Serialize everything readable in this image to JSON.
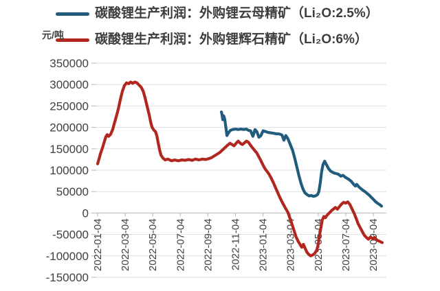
{
  "page_background": "#ffffff",
  "unit_label": "元/吨",
  "legend": [
    {
      "label": "碳酸锂生产利润：外购锂云母精矿（Li₂O:2.5%）",
      "color": "#215c7c",
      "series_key": "mica"
    },
    {
      "label": "碳酸锂生产利润：外购锂辉石精矿（Li₂O:6%）",
      "color": "#b2271d",
      "series_key": "spodumene"
    }
  ],
  "chart_data": {
    "type": "line",
    "title": "",
    "ylabel": "元/吨",
    "xlabel": "",
    "grid": true,
    "legend_position": "top-left",
    "ylim": [
      -150000,
      350000
    ],
    "xlim": [
      -0.1,
      20.95
    ],
    "x_unit": "months since 2022-01-04",
    "grid_color": "#dedede",
    "axis_color": "#b5b5b5",
    "tick_text_color": "#404040",
    "y_ticks": [
      350000,
      300000,
      250000,
      200000,
      150000,
      100000,
      50000,
      0,
      -50000,
      -100000,
      -150000
    ],
    "x_ticks": [
      {
        "t": 0,
        "label": "2022-01-04"
      },
      {
        "t": 2,
        "label": "2022-03-04"
      },
      {
        "t": 4,
        "label": "2022-05-04"
      },
      {
        "t": 6,
        "label": "2022-07-04"
      },
      {
        "t": 8,
        "label": "2022-09-04"
      },
      {
        "t": 10,
        "label": "2022-11-04"
      },
      {
        "t": 12,
        "label": "2023-01-04"
      },
      {
        "t": 14,
        "label": "2023-03-04"
      },
      {
        "t": 16,
        "label": "2023-05-04"
      },
      {
        "t": 18,
        "label": "2023-07-04"
      },
      {
        "t": 20,
        "label": "2023-09-04"
      }
    ],
    "series": [
      {
        "name": "碳酸锂生产利润：外购锂云母精矿（Li₂O:2.5%）",
        "key": "mica-blue",
        "color": "#215c7c",
        "points": [
          [
            8.98,
            236000
          ],
          [
            9.03,
            230000
          ],
          [
            9.08,
            218000
          ],
          [
            9.15,
            227000
          ],
          [
            9.22,
            220000
          ],
          [
            9.3,
            202000
          ],
          [
            9.38,
            181000
          ],
          [
            9.5,
            188000
          ],
          [
            9.63,
            193000
          ],
          [
            9.8,
            195000
          ],
          [
            10.0,
            196000
          ],
          [
            10.2,
            195000
          ],
          [
            10.4,
            196000
          ],
          [
            10.6,
            195000
          ],
          [
            10.8,
            196000
          ],
          [
            10.95,
            193000
          ],
          [
            11.1,
            192000
          ],
          [
            11.27,
            179000
          ],
          [
            11.42,
            195000
          ],
          [
            11.55,
            190000
          ],
          [
            11.7,
            177000
          ],
          [
            11.85,
            181000
          ],
          [
            12.0,
            192000
          ],
          [
            12.2,
            190000
          ],
          [
            12.4,
            188000
          ],
          [
            12.6,
            187000
          ],
          [
            12.8,
            186000
          ],
          [
            12.95,
            185000
          ],
          [
            13.1,
            185000
          ],
          [
            13.25,
            184000
          ],
          [
            13.38,
            182000
          ],
          [
            13.52,
            170000
          ],
          [
            13.65,
            181000
          ],
          [
            13.78,
            175000
          ],
          [
            13.9,
            166000
          ],
          [
            14.0,
            158000
          ],
          [
            14.15,
            146000
          ],
          [
            14.3,
            128000
          ],
          [
            14.45,
            108000
          ],
          [
            14.6,
            88000
          ],
          [
            14.75,
            70000
          ],
          [
            14.9,
            56000
          ],
          [
            15.05,
            47000
          ],
          [
            15.2,
            43000
          ],
          [
            15.35,
            40000
          ],
          [
            15.5,
            41000
          ],
          [
            15.65,
            39000
          ],
          [
            15.8,
            40000
          ],
          [
            15.95,
            43000
          ],
          [
            16.05,
            50000
          ],
          [
            16.15,
            70000
          ],
          [
            16.25,
            96000
          ],
          [
            16.35,
            113000
          ],
          [
            16.47,
            121000
          ],
          [
            16.6,
            113000
          ],
          [
            16.75,
            104000
          ],
          [
            16.9,
            98000
          ],
          [
            17.05,
            95000
          ],
          [
            17.2,
            93000
          ],
          [
            17.35,
            92000
          ],
          [
            17.5,
            90000
          ],
          [
            17.65,
            86000
          ],
          [
            17.8,
            88000
          ],
          [
            17.95,
            84000
          ],
          [
            18.1,
            81000
          ],
          [
            18.25,
            78000
          ],
          [
            18.4,
            74000
          ],
          [
            18.55,
            68000
          ],
          [
            18.7,
            63000
          ],
          [
            18.8,
            67000
          ],
          [
            18.95,
            61000
          ],
          [
            19.1,
            57000
          ],
          [
            19.25,
            53000
          ],
          [
            19.4,
            50000
          ],
          [
            19.55,
            46000
          ],
          [
            19.7,
            42000
          ],
          [
            19.85,
            37000
          ],
          [
            20.0,
            32000
          ],
          [
            20.15,
            27000
          ],
          [
            20.3,
            23000
          ],
          [
            20.45,
            20000
          ],
          [
            20.6,
            16000
          ]
        ]
      },
      {
        "name": "碳酸锂生产利润：外购锂辉石精矿（Li₂O:6%）",
        "key": "spodumene-red",
        "color": "#b2271d",
        "points": [
          [
            0,
            115000
          ],
          [
            0.1,
            126000
          ],
          [
            0.2,
            138000
          ],
          [
            0.35,
            152000
          ],
          [
            0.5,
            168000
          ],
          [
            0.6,
            178000
          ],
          [
            0.7,
            183000
          ],
          [
            0.8,
            179000
          ],
          [
            0.95,
            184000
          ],
          [
            1.1,
            196000
          ],
          [
            1.2,
            208000
          ],
          [
            1.35,
            225000
          ],
          [
            1.5,
            243000
          ],
          [
            1.6,
            258000
          ],
          [
            1.7,
            272000
          ],
          [
            1.8,
            285000
          ],
          [
            1.95,
            298000
          ],
          [
            2.1,
            304000
          ],
          [
            2.25,
            302000
          ],
          [
            2.4,
            306000
          ],
          [
            2.55,
            303000
          ],
          [
            2.7,
            306000
          ],
          [
            2.85,
            304000
          ],
          [
            3.0,
            299000
          ],
          [
            3.15,
            294000
          ],
          [
            3.3,
            285000
          ],
          [
            3.45,
            268000
          ],
          [
            3.6,
            248000
          ],
          [
            3.75,
            228000
          ],
          [
            3.85,
            212000
          ],
          [
            3.95,
            200000
          ],
          [
            4.1,
            193000
          ],
          [
            4.2,
            190000
          ],
          [
            4.3,
            180000
          ],
          [
            4.4,
            163000
          ],
          [
            4.5,
            147000
          ],
          [
            4.6,
            135000
          ],
          [
            4.75,
            128000
          ],
          [
            4.9,
            124000
          ],
          [
            5.1,
            126000
          ],
          [
            5.35,
            122000
          ],
          [
            5.6,
            124000
          ],
          [
            5.85,
            122000
          ],
          [
            6.1,
            124000
          ],
          [
            6.35,
            123000
          ],
          [
            6.6,
            125000
          ],
          [
            6.85,
            123000
          ],
          [
            7.1,
            126000
          ],
          [
            7.35,
            124000
          ],
          [
            7.6,
            126000
          ],
          [
            7.85,
            125000
          ],
          [
            8.05,
            127000
          ],
          [
            8.25,
            129000
          ],
          [
            8.45,
            133000
          ],
          [
            8.65,
            137000
          ],
          [
            8.85,
            141000
          ],
          [
            9.05,
            147000
          ],
          [
            9.25,
            153000
          ],
          [
            9.45,
            159000
          ],
          [
            9.6,
            163000
          ],
          [
            9.75,
            160000
          ],
          [
            9.9,
            157000
          ],
          [
            10.05,
            163000
          ],
          [
            10.2,
            168000
          ],
          [
            10.35,
            163000
          ],
          [
            10.5,
            160000
          ],
          [
            10.65,
            164000
          ],
          [
            10.8,
            168000
          ],
          [
            10.95,
            165000
          ],
          [
            11.1,
            158000
          ],
          [
            11.25,
            152000
          ],
          [
            11.4,
            146000
          ],
          [
            11.55,
            140000
          ],
          [
            11.7,
            131000
          ],
          [
            11.85,
            122000
          ],
          [
            12.0,
            112000
          ],
          [
            12.15,
            103000
          ],
          [
            12.3,
            97000
          ],
          [
            12.45,
            90000
          ],
          [
            12.6,
            81000
          ],
          [
            12.75,
            71000
          ],
          [
            12.9,
            60000
          ],
          [
            13.05,
            49000
          ],
          [
            13.2,
            38000
          ],
          [
            13.35,
            28000
          ],
          [
            13.5,
            19000
          ],
          [
            13.65,
            10000
          ],
          [
            13.8,
            2000
          ],
          [
            13.95,
            -12000
          ],
          [
            14.1,
            -26000
          ],
          [
            14.25,
            -41000
          ],
          [
            14.4,
            -56000
          ],
          [
            14.55,
            -66000
          ],
          [
            14.7,
            -74000
          ],
          [
            14.82,
            -80000
          ],
          [
            14.93,
            -73000
          ],
          [
            15.05,
            -82000
          ],
          [
            15.18,
            -91000
          ],
          [
            15.3,
            -96000
          ],
          [
            15.45,
            -100000
          ],
          [
            15.6,
            -98000
          ],
          [
            15.75,
            -94000
          ],
          [
            15.88,
            -88000
          ],
          [
            16.0,
            -74000
          ],
          [
            16.1,
            -52000
          ],
          [
            16.2,
            -34000
          ],
          [
            16.3,
            -16000
          ],
          [
            16.42,
            -8000
          ],
          [
            16.52,
            -11000
          ],
          [
            16.65,
            -5000
          ],
          [
            16.8,
            0
          ],
          [
            16.95,
            5000
          ],
          [
            17.1,
            9000
          ],
          [
            17.25,
            13000
          ],
          [
            17.4,
            9000
          ],
          [
            17.55,
            15000
          ],
          [
            17.7,
            21000
          ],
          [
            17.85,
            25000
          ],
          [
            18.0,
            23000
          ],
          [
            18.15,
            26000
          ],
          [
            18.3,
            20000
          ],
          [
            18.45,
            10000
          ],
          [
            18.6,
            0
          ],
          [
            18.75,
            -12000
          ],
          [
            18.9,
            -25000
          ],
          [
            19.05,
            -34000
          ],
          [
            19.2,
            -43000
          ],
          [
            19.35,
            -52000
          ],
          [
            19.5,
            -57000
          ],
          [
            19.65,
            -61000
          ],
          [
            19.8,
            -56000
          ],
          [
            19.95,
            -60000
          ],
          [
            20.1,
            -57000
          ],
          [
            20.25,
            -63000
          ],
          [
            20.45,
            -66000
          ],
          [
            20.65,
            -69000
          ]
        ]
      }
    ]
  }
}
